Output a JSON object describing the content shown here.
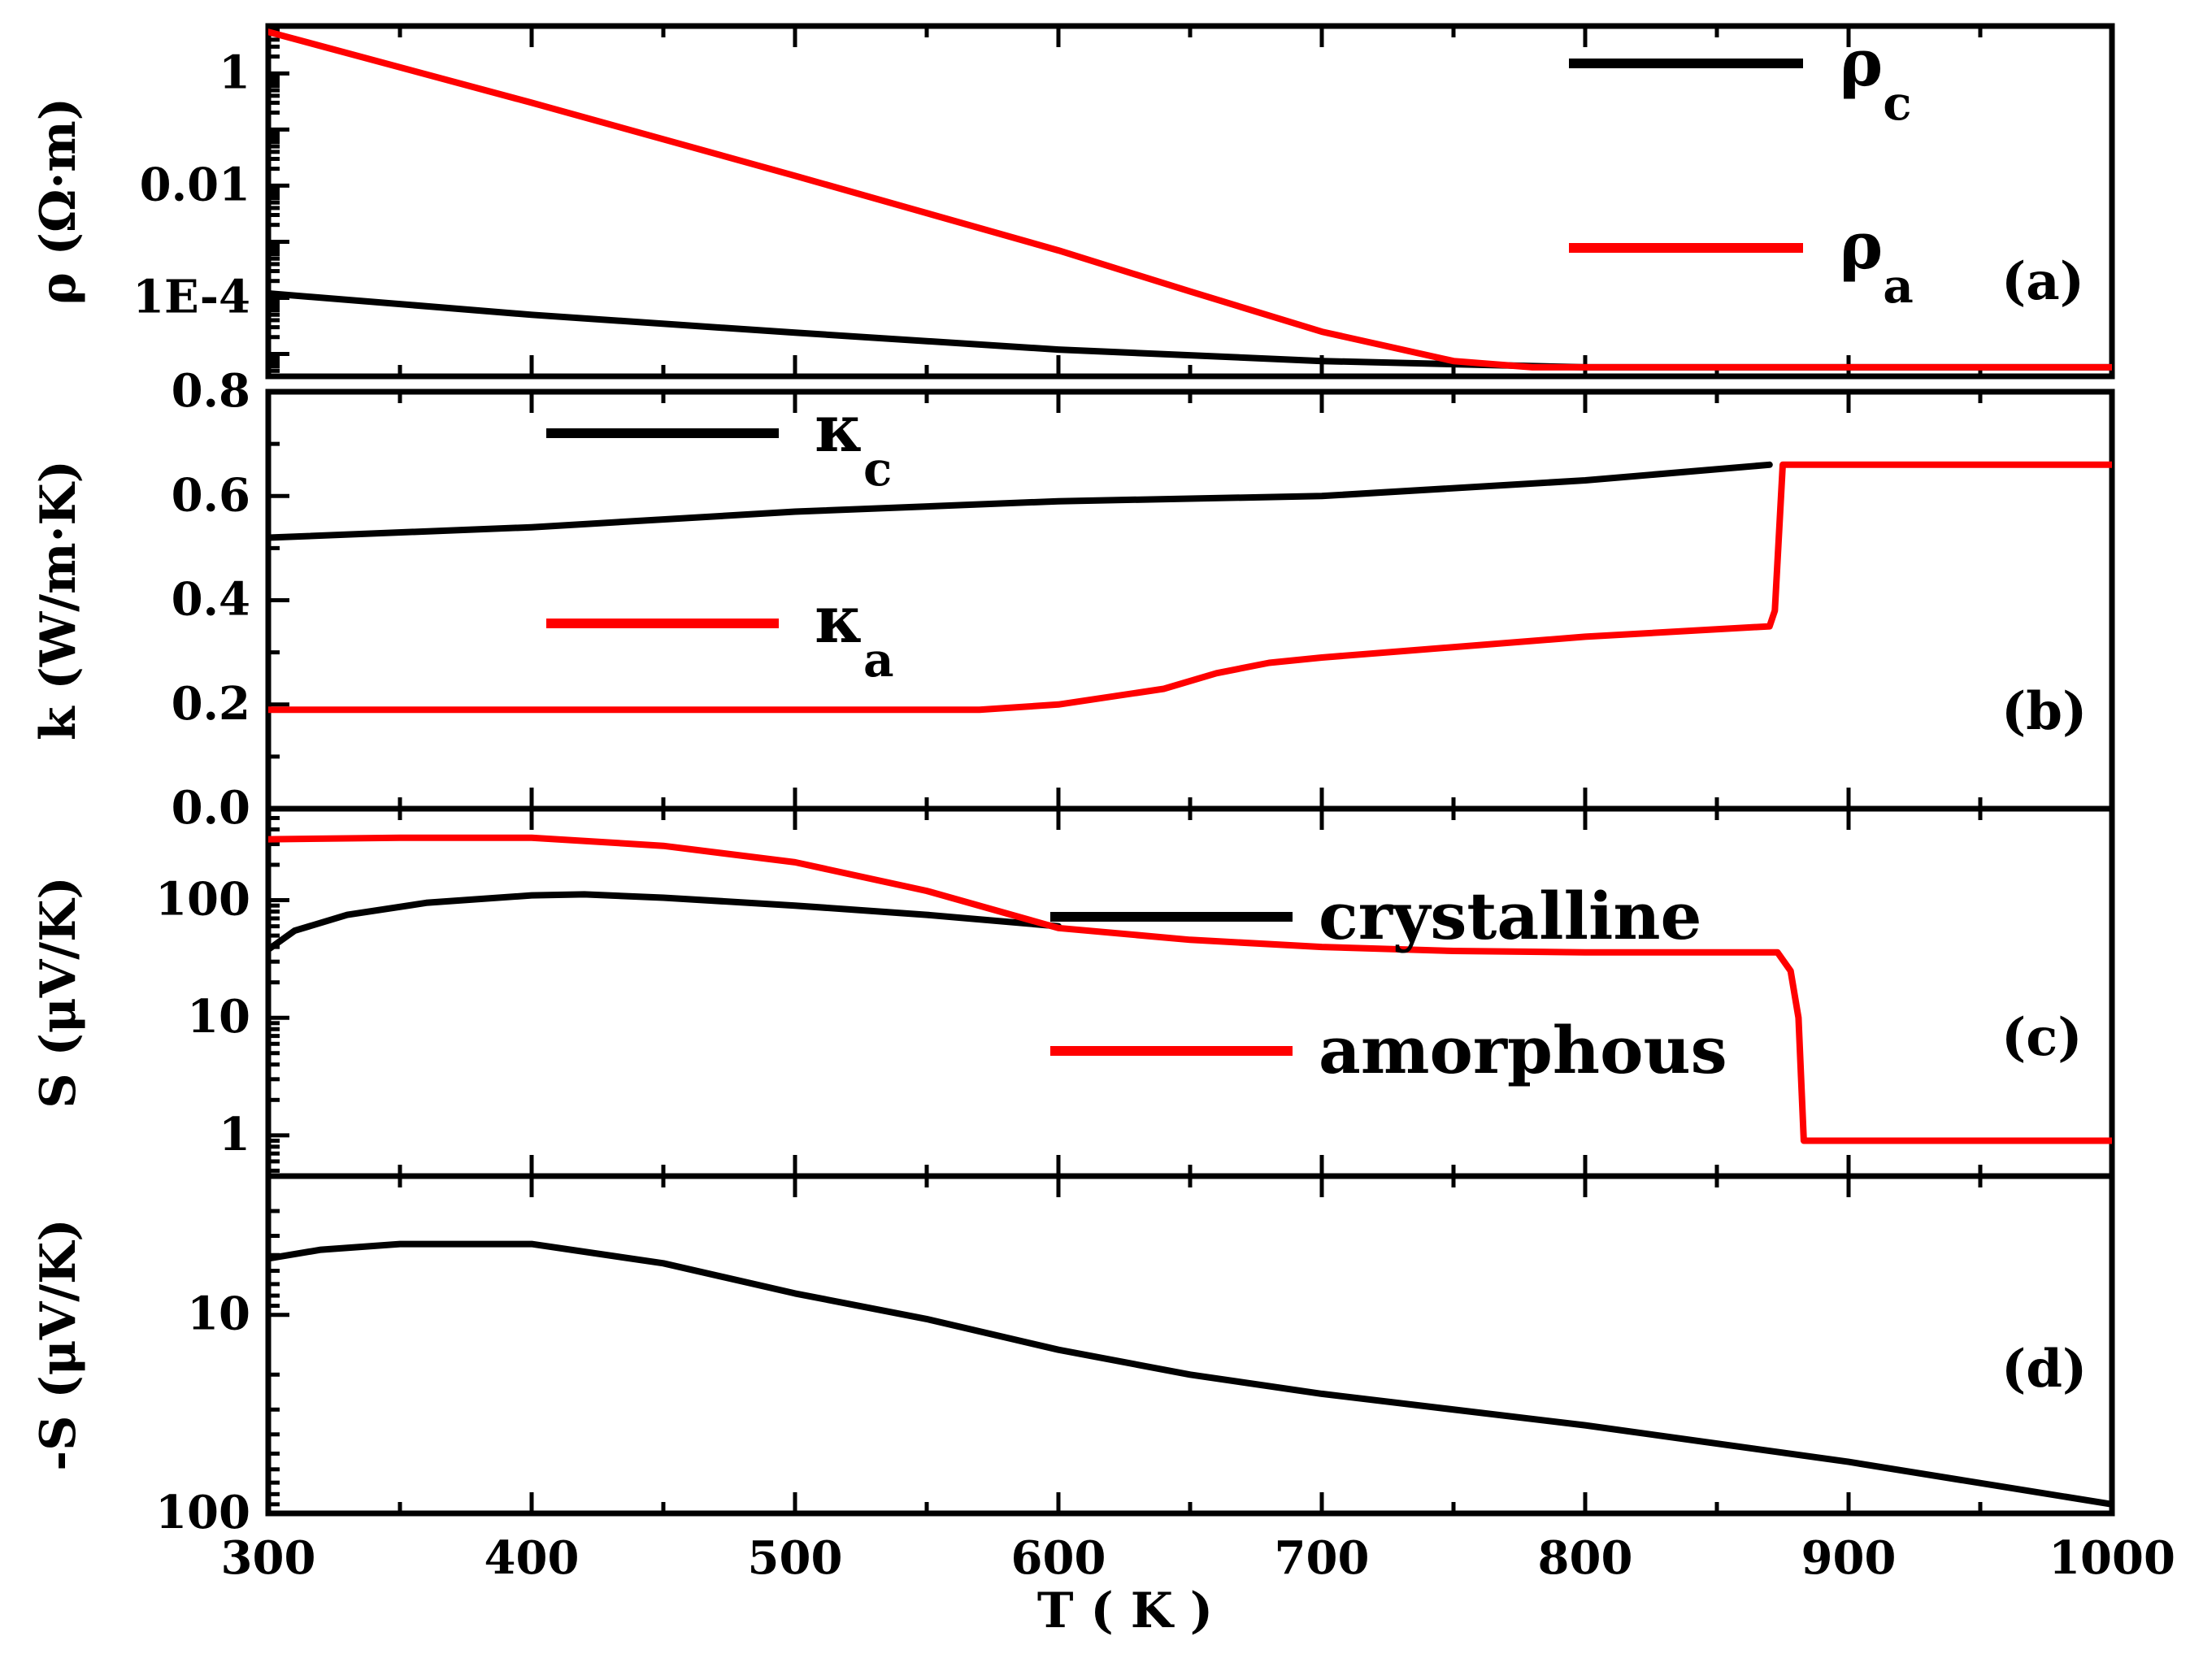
{
  "chart_data": [
    {
      "panel": "a",
      "type": "line",
      "y_scale": "log",
      "ylabel": "ρ (Ω·m)",
      "yticks": [
        {
          "v": 1,
          "label": "1"
        },
        {
          "v": 0.01,
          "label": "0.01"
        },
        {
          "v": 0.0001,
          "label": "1E-4"
        }
      ],
      "ylim": [
        4e-06,
        7
      ],
      "xlim": [
        300,
        1000
      ],
      "tag": "(a)",
      "legend": [
        {
          "name": "ρ",
          "sub": "c",
          "color": "#000000"
        },
        {
          "name": "ρ",
          "sub": "a",
          "color": "#ff0000"
        }
      ],
      "series": [
        {
          "name": "ρc",
          "color": "#000000",
          "x": [
            300,
            400,
            500,
            600,
            700,
            800,
            1000
          ],
          "y": [
            0.00012,
            5e-05,
            2.4e-05,
            1.2e-05,
            7.5e-06,
            5.8e-06,
            5.8e-06
          ]
        },
        {
          "name": "ρa",
          "color": "#ff0000",
          "x": [
            300,
            400,
            500,
            600,
            650,
            700,
            750,
            780,
            800,
            1000
          ],
          "y": [
            5.5,
            0.3,
            0.015,
            0.0007,
            0.00013,
            2.5e-05,
            7.5e-06,
            5.8e-06,
            5.8e-06,
            5.8e-06
          ]
        }
      ]
    },
    {
      "panel": "b",
      "type": "line",
      "y_scale": "linear",
      "ylabel": "k (W/m·K)",
      "yticks": [
        {
          "v": 0,
          "label": "0.0"
        },
        {
          "v": 0.2,
          "label": "0.2"
        },
        {
          "v": 0.4,
          "label": "0.4"
        },
        {
          "v": 0.6,
          "label": "0.6"
        },
        {
          "v": 0.8,
          "label": "0.8"
        }
      ],
      "ylim": [
        0,
        0.8
      ],
      "xlim": [
        300,
        1000
      ],
      "tag": "(b)",
      "legend": [
        {
          "name": "κ",
          "sub": "c",
          "color": "#000000"
        },
        {
          "name": "κ",
          "sub": "a",
          "color": "#ff0000"
        }
      ],
      "series": [
        {
          "name": "κc",
          "color": "#000000",
          "x": [
            300,
            400,
            500,
            600,
            700,
            800,
            870
          ],
          "y": [
            0.52,
            0.54,
            0.57,
            0.59,
            0.6,
            0.63,
            0.66
          ]
        },
        {
          "name": "κa",
          "color": "#ff0000",
          "x": [
            300,
            400,
            500,
            570,
            600,
            640,
            660,
            680,
            700,
            800,
            870,
            872,
            875,
            1000
          ],
          "y": [
            0.19,
            0.19,
            0.19,
            0.19,
            0.2,
            0.23,
            0.26,
            0.28,
            0.29,
            0.33,
            0.35,
            0.38,
            0.66,
            0.66
          ]
        }
      ]
    },
    {
      "panel": "c",
      "type": "line",
      "y_scale": "log",
      "ylabel": "S (μV/K)",
      "yticks": [
        {
          "v": 1,
          "label": "1"
        },
        {
          "v": 10,
          "label": "10"
        },
        {
          "v": 100,
          "label": "100"
        }
      ],
      "ylim": [
        0.45,
        600
      ],
      "xlim": [
        300,
        1000
      ],
      "tag": "(c)",
      "legend": [
        {
          "name": "crystalline",
          "color": "#000000"
        },
        {
          "name": "amorphous",
          "color": "#ff0000"
        }
      ],
      "series": [
        {
          "name": "crystalline",
          "color": "#000000",
          "x": [
            300,
            310,
            330,
            360,
            400,
            420,
            450,
            500,
            550,
            600
          ],
          "y": [
            38,
            55,
            75,
            95,
            110,
            112,
            105,
            90,
            75,
            60
          ]
        },
        {
          "name": "amorphous",
          "color": "#ff0000",
          "x": [
            300,
            350,
            400,
            450,
            500,
            550,
            600,
            650,
            700,
            750,
            800,
            850,
            873,
            878,
            881,
            883,
            1000
          ],
          "y": [
            330,
            340,
            340,
            290,
            210,
            120,
            58,
            46,
            40,
            37,
            36,
            36,
            36,
            25,
            10,
            0.9,
            0.9
          ]
        }
      ]
    },
    {
      "panel": "d",
      "type": "line",
      "y_scale": "log",
      "y_inverted": true,
      "ylabel": "-S (μV/K)",
      "yticks": [
        {
          "v": 10,
          "label": "10"
        },
        {
          "v": 100,
          "label": "100"
        }
      ],
      "ylim": [
        2,
        100
      ],
      "xlim": [
        300,
        1000
      ],
      "xticks": [
        300,
        400,
        500,
        600,
        700,
        800,
        900,
        1000
      ],
      "xlabel": "T ( K )",
      "tag": "(d)",
      "series": [
        {
          "name": "-S",
          "color": "#000000",
          "x": [
            300,
            320,
            350,
            400,
            450,
            500,
            550,
            600,
            650,
            700,
            800,
            900,
            1000
          ],
          "y": [
            5.2,
            4.7,
            4.4,
            4.4,
            5.5,
            7.8,
            10.5,
            15,
            20,
            25,
            36,
            55,
            90
          ]
        }
      ]
    }
  ]
}
